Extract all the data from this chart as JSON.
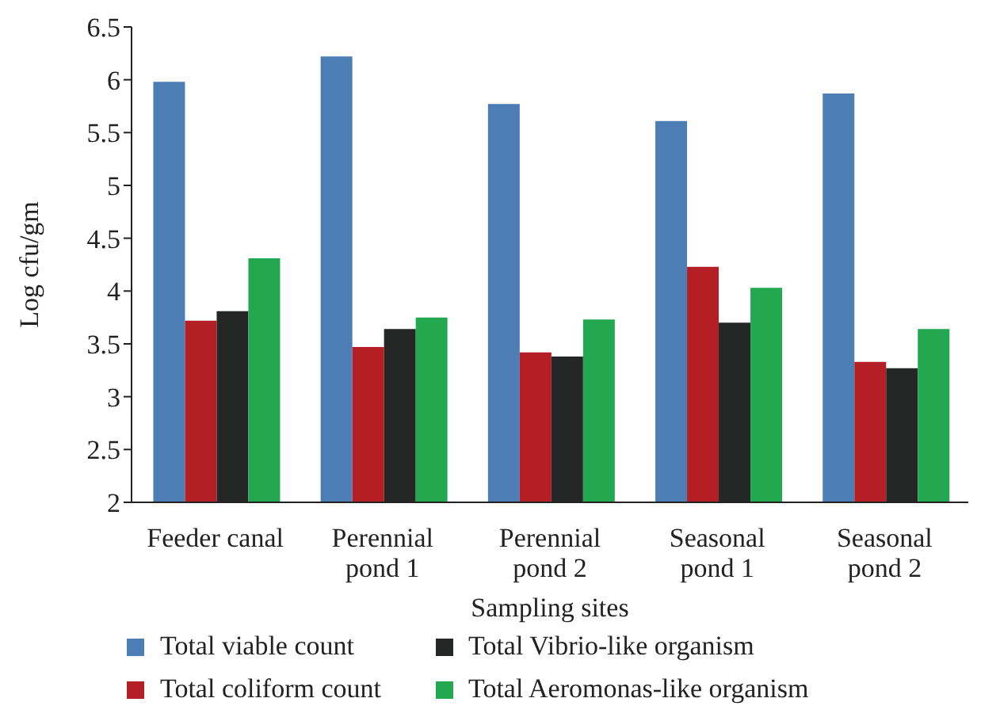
{
  "chart_data": {
    "type": "bar",
    "xlabel": "Sampling sites",
    "ylabel": "Log cfu/gm",
    "categories": [
      "Feeder canal",
      "Perennial pond 1",
      "Perennial pond 2",
      "Seasonal pond 1",
      "Seasonal pond 2"
    ],
    "series": [
      {
        "name": "Total viable count",
        "color": "#4d7db5",
        "values": [
          5.98,
          6.22,
          5.77,
          5.61,
          5.87
        ]
      },
      {
        "name": "Total coliform count",
        "color": "#b31f25",
        "values": [
          3.72,
          3.47,
          3.42,
          4.23,
          3.33
        ]
      },
      {
        "name": "Total Vibrio-like organism",
        "color": "#252626",
        "values": [
          3.81,
          3.64,
          3.38,
          3.7,
          3.27
        ]
      },
      {
        "name": "Total Aeromonas-like organism",
        "color": "#23a84f",
        "values": [
          4.31,
          3.75,
          3.73,
          4.03,
          3.64
        ]
      }
    ],
    "ylim": [
      2,
      6.5
    ],
    "yticks": [
      2,
      2.5,
      3,
      3.5,
      4,
      4.5,
      5,
      5.5,
      6,
      6.5
    ],
    "grid": false,
    "legend": "bottom"
  }
}
